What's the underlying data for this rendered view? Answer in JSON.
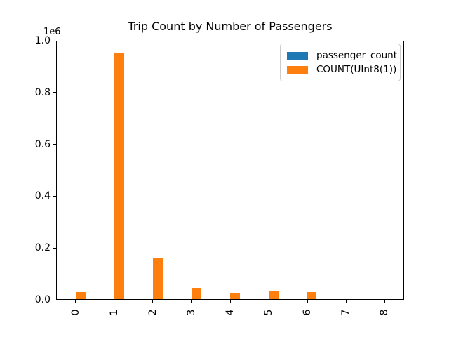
{
  "chart_data": {
    "type": "bar",
    "title": "Trip Count by Number of Passengers",
    "categories": [
      "0",
      "1",
      "2",
      "3",
      "4",
      "5",
      "6",
      "7",
      "8"
    ],
    "series": [
      {
        "name": "passenger_count",
        "color": "#1f77b4",
        "values": [
          0,
          1,
          2,
          3,
          4,
          5,
          6,
          7,
          8
        ]
      },
      {
        "name": "COUNT(UInt8(1))",
        "color": "#ff7f0e",
        "values": [
          28000,
          957000,
          161000,
          43000,
          21000,
          31000,
          26000,
          0,
          0
        ]
      }
    ],
    "xlabel": "",
    "ylabel": "",
    "ylim": [
      0,
      1000000
    ],
    "yticks": [
      0,
      200000,
      400000,
      600000,
      800000,
      1000000
    ],
    "ytick_labels": [
      "0.0",
      "0.2",
      "0.4",
      "0.6",
      "0.8",
      "1.0"
    ],
    "y_offset_label": "1e6",
    "xtick_rotation": 90,
    "grid": false,
    "legend_position": "upper right",
    "bar_group_width": 0.5,
    "colors": {
      "axes_edge": "#000000",
      "background": "#ffffff",
      "legend_edge": "#cccccc"
    }
  }
}
